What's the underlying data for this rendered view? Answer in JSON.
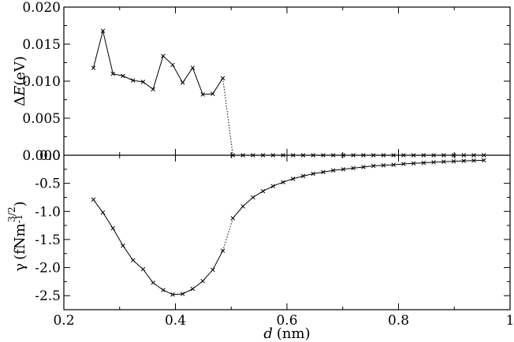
{
  "chart_data": [
    {
      "type": "line",
      "panel": "top",
      "ylabel": {
        "prefix": "Δ",
        "symbol": "E",
        "unit": "(eV)"
      },
      "ylim": [
        0,
        0.02
      ],
      "yticks": [
        "0.000",
        "0.005",
        "0.010",
        "0.015",
        "0.020"
      ],
      "grid": false,
      "marker": "x",
      "series": [
        {
          "x": [
            0.253,
            0.27,
            0.288,
            0.306,
            0.324,
            0.342,
            0.36,
            0.378,
            0.395,
            0.413,
            0.431,
            0.449,
            0.467,
            0.485
          ],
          "y": [
            0.0118,
            0.0168,
            0.011,
            0.0107,
            0.0101,
            0.0099,
            0.0089,
            0.0134,
            0.0122,
            0.0098,
            0.0118,
            0.0082,
            0.0083,
            0.0104
          ],
          "style": "solid"
        },
        {
          "x": [
            0.485,
            0.503
          ],
          "y": [
            0.0104,
            0.0
          ],
          "style": "dotted"
        },
        {
          "x": [
            0.503,
            0.521,
            0.539,
            0.557,
            0.575,
            0.593,
            0.611,
            0.629,
            0.647,
            0.665,
            0.683,
            0.701,
            0.719,
            0.737,
            0.755,
            0.773,
            0.791,
            0.809,
            0.827,
            0.845,
            0.863,
            0.881,
            0.899,
            0.917,
            0.935,
            0.953
          ],
          "y": [
            0,
            0,
            0,
            0,
            0,
            0,
            0,
            0,
            0,
            0,
            0,
            0,
            0,
            0,
            0,
            0,
            0,
            0,
            0,
            0,
            0,
            0,
            0,
            0,
            0,
            0
          ],
          "style": "solid"
        }
      ]
    },
    {
      "type": "line",
      "panel": "bottom",
      "xlabel": {
        "symbol": "d",
        "unit": "(nm)"
      },
      "ylabel": {
        "symbol": "γ",
        "unit_open": "(fNm",
        "exp_base": "-1",
        "exp_sup": "3/2",
        "unit_close": ")"
      },
      "xlim": [
        0.2,
        1.0
      ],
      "xticks": [
        "0.2",
        "0.4",
        "0.6",
        "0.8",
        "1"
      ],
      "ylim": [
        -2.75,
        0.0
      ],
      "yticks": [
        "0.0",
        "-0.5",
        "-1.0",
        "-1.5",
        "-2.0",
        "-2.5"
      ],
      "grid": false,
      "marker": "x",
      "series": [
        {
          "x": [
            0.253,
            0.27,
            0.288,
            0.306,
            0.324,
            0.342,
            0.36,
            0.378,
            0.395,
            0.413,
            0.431,
            0.449,
            0.467,
            0.485
          ],
          "y": [
            -0.79,
            -1.02,
            -1.3,
            -1.61,
            -1.87,
            -2.03,
            -2.27,
            -2.4,
            -2.48,
            -2.47,
            -2.38,
            -2.24,
            -2.04,
            -1.7
          ],
          "style": "solid"
        },
        {
          "x": [
            0.485,
            0.503
          ],
          "y": [
            -1.7,
            -1.12
          ],
          "style": "dotted"
        },
        {
          "x": [
            0.503,
            0.521,
            0.539,
            0.557,
            0.575,
            0.593,
            0.611,
            0.629,
            0.647,
            0.665,
            0.683,
            0.701,
            0.719,
            0.737,
            0.755,
            0.773,
            0.791,
            0.809,
            0.827,
            0.845,
            0.863,
            0.881,
            0.899,
            0.917,
            0.935,
            0.953
          ],
          "y": [
            -1.12,
            -0.91,
            -0.75,
            -0.64,
            -0.55,
            -0.48,
            -0.42,
            -0.37,
            -0.33,
            -0.3,
            -0.27,
            -0.25,
            -0.23,
            -0.21,
            -0.19,
            -0.18,
            -0.17,
            -0.155,
            -0.145,
            -0.135,
            -0.125,
            -0.115,
            -0.108,
            -0.1,
            -0.095,
            -0.09
          ],
          "style": "solid"
        }
      ]
    }
  ]
}
